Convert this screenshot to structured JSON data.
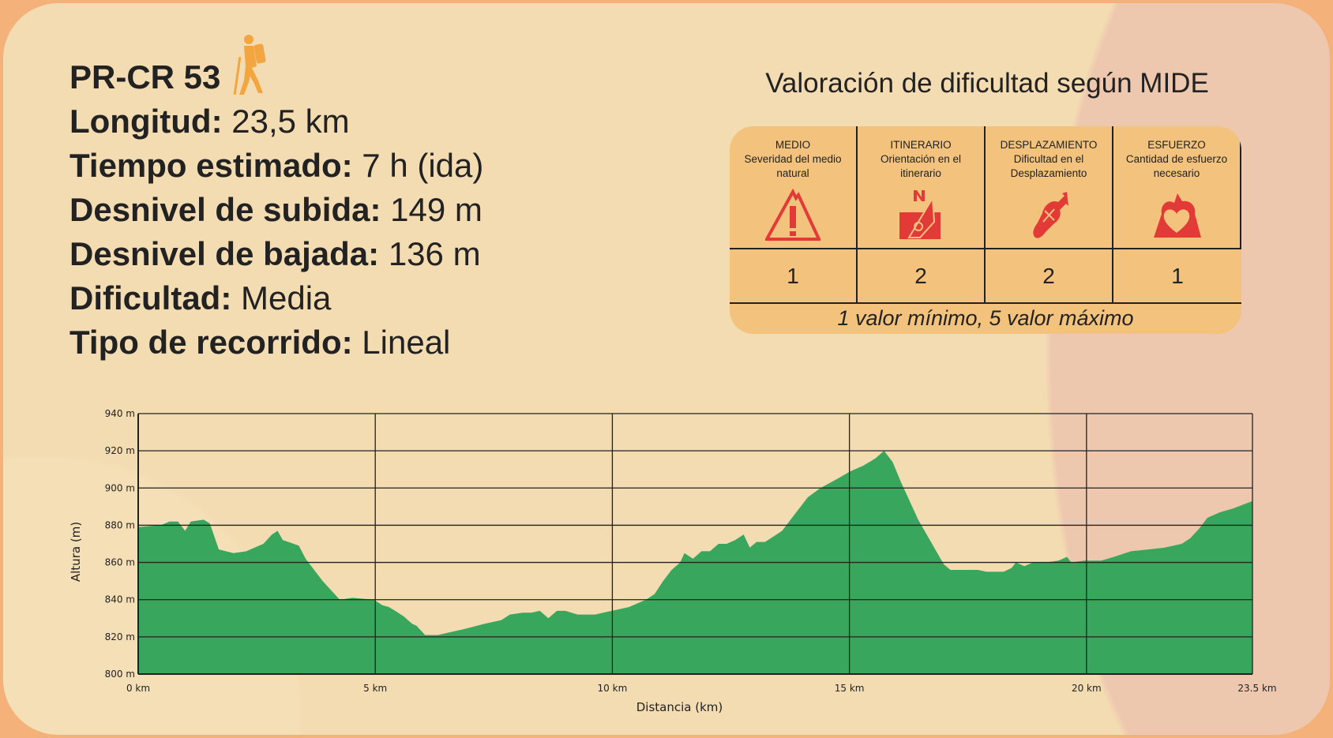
{
  "route": {
    "code": "PR-CR 53",
    "fields": [
      {
        "label": "Longitud:",
        "value": "23,5 km"
      },
      {
        "label": "Tiempo estimado:",
        "value": "7 h (ida)"
      },
      {
        "label": "Desnivel de subida:",
        "value": "149 m"
      },
      {
        "label": "Desnivel de bajada:",
        "value": "136 m"
      },
      {
        "label": "Dificultad:",
        "value": "Media"
      },
      {
        "label": "Tipo de recorrido:",
        "value": "Lineal"
      }
    ]
  },
  "mide": {
    "title": "Valoración de dificultad según MIDE",
    "columns": [
      {
        "name": "MEDIO",
        "desc": "Severidad del medio natural",
        "icon": "warning-mountain-icon",
        "value": "1"
      },
      {
        "name": "ITINERARIO",
        "desc": "Orientación en el itinerario",
        "icon": "compass-icon",
        "value": "2"
      },
      {
        "name": "DESPLAZAMIENTO",
        "desc": "Dificultad en el Desplazamiento",
        "icon": "boot-print-icon",
        "value": "2"
      },
      {
        "name": "ESFUERZO",
        "desc": "Cantidad de esfuerzo necesario",
        "icon": "heart-effort-icon",
        "value": "1"
      }
    ],
    "footnote": "1 valor mínimo, 5 valor máximo"
  },
  "colors": {
    "fill": "#38a75d",
    "icon": "#e23a37",
    "hiker": "#f3a640"
  },
  "chart_data": {
    "type": "area",
    "xlabel": "Distancia (km)",
    "ylabel": "Altura (m)",
    "xlim": [
      0,
      23.5
    ],
    "ylim": [
      800,
      940
    ],
    "xticks": [
      0,
      5,
      10,
      15,
      20,
      23.5
    ],
    "xtick_labels": [
      "0 km",
      "5 km",
      "10 km",
      "15 km",
      "20 km",
      "23.5 km"
    ],
    "yticks": [
      800,
      820,
      840,
      860,
      880,
      900,
      920,
      940
    ],
    "ytick_labels": [
      "800 m",
      "820 m",
      "840 m",
      "860 m",
      "880 m",
      "900 m",
      "920 m",
      "940 m"
    ],
    "grid": true,
    "x": [
      0,
      0.48,
      0.66,
      0.84,
      0.99,
      1.11,
      1.38,
      1.51,
      1.7,
      2.01,
      2.28,
      2.64,
      2.82,
      2.94,
      3.05,
      3.17,
      3.39,
      3.53,
      3.89,
      4.25,
      4.52,
      4.97,
      5.15,
      5.29,
      5.42,
      5.6,
      5.78,
      5.87,
      6.05,
      6.32,
      6.49,
      6.67,
      6.85,
      7.3,
      7.66,
      7.84,
      8.11,
      8.29,
      8.47,
      8.65,
      8.83,
      9.01,
      9.27,
      9.63,
      9.99,
      10.35,
      10.71,
      10.89,
      11.07,
      11.25,
      11.43,
      11.52,
      11.7,
      11.88,
      12.06,
      12.24,
      12.41,
      12.59,
      12.77,
      12.9,
      13.04,
      13.22,
      13.4,
      13.58,
      13.85,
      14.12,
      14.39,
      14.75,
      15.02,
      15.29,
      15.55,
      15.73,
      15.91,
      16.09,
      16.27,
      16.45,
      16.72,
      16.99,
      17.13,
      17.44,
      17.71,
      17.89,
      18.25,
      18.42,
      18.51,
      18.69,
      18.87,
      19.14,
      19.41,
      19.59,
      19.68,
      19.95,
      20.31,
      20.58,
      20.94,
      21.3,
      21.65,
      22.01,
      22.19,
      22.37,
      22.55,
      22.82,
      23.09,
      23.5
    ],
    "y": [
      879,
      880,
      882,
      882,
      877,
      882,
      883,
      881,
      867,
      865,
      866,
      870,
      875,
      877,
      872,
      871,
      869,
      862,
      850,
      840,
      841,
      840,
      837,
      836,
      834,
      831,
      827,
      826,
      821,
      821,
      822,
      823,
      824,
      827,
      829,
      832,
      833,
      833,
      834,
      830,
      834,
      834,
      832,
      832,
      834,
      836,
      840,
      843,
      850,
      856,
      860,
      865,
      862,
      866,
      866,
      870,
      870,
      872,
      875,
      868,
      871,
      871,
      874,
      877,
      886,
      895,
      900,
      905,
      909,
      912,
      916,
      920,
      914,
      903,
      893,
      883,
      871,
      859,
      856,
      856,
      856,
      855,
      855,
      857,
      860,
      858,
      860,
      860,
      861,
      863,
      860,
      861,
      861,
      863,
      866,
      867,
      868,
      870,
      873,
      878,
      884,
      887,
      889,
      893
    ]
  }
}
